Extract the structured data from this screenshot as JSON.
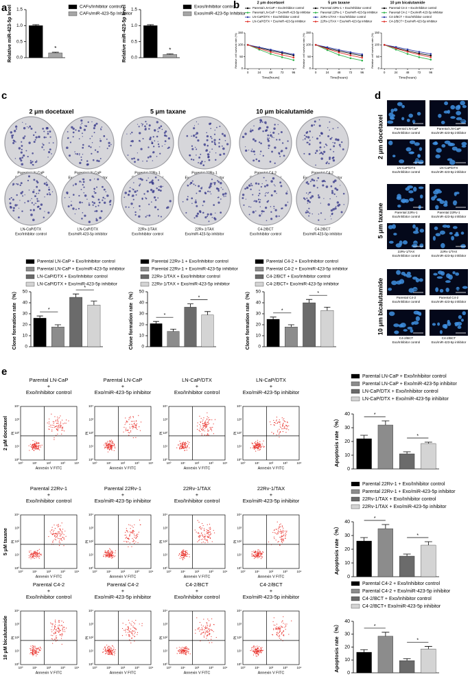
{
  "chart_data": [
    {
      "type": "bar",
      "y_label": "Relative miR-423-5p level",
      "ylim": [
        0,
        1.5
      ],
      "yticks": [
        {
          "value": 0,
          "label": "0.0"
        },
        {
          "value": 0.5,
          "label": "0.5"
        },
        {
          "value": 1,
          "label": "1.0"
        },
        {
          "value": 1.5,
          "label": "1.5"
        }
      ],
      "series": [
        {
          "name": "CAFs/Inhibitor control",
          "color": "#000000",
          "values": [
            1.0
          ],
          "errors": [
            0.03
          ]
        },
        {
          "name": "CAFs/miR-423-5p Inhibitor",
          "color": "#a6a6a6",
          "values": [
            0.15
          ],
          "errors": [
            0.02
          ]
        }
      ],
      "annotations": [
        "*"
      ]
    },
    {
      "type": "bar",
      "y_label": "Relative miR-423-5p level",
      "ylim": [
        0,
        1.5
      ],
      "yticks": [
        {
          "value": 0,
          "label": "0.0"
        },
        {
          "value": 0.5,
          "label": "0.5"
        },
        {
          "value": 1,
          "label": "1.0"
        },
        {
          "value": 1.5,
          "label": "1.5"
        }
      ],
      "series": [
        {
          "name": "Exos/Inhibitor control",
          "color": "#000000",
          "values": [
            1.0
          ],
          "errors": [
            0.03
          ]
        },
        {
          "name": "Exos/miR-423-5p Inhibitor",
          "color": "#a6a6a6",
          "values": [
            0.1
          ],
          "errors": [
            0.02
          ]
        }
      ],
      "annotations": [
        "*"
      ]
    },
    {
      "type": "line",
      "title": "2 μm docetaxel",
      "x_label": "Time(hours)",
      "y_label": "Relative cell survival rate (%)",
      "x": [
        0,
        24,
        48,
        72,
        96
      ],
      "xlim": [
        -6,
        102
      ],
      "xticks": [
        0,
        24,
        48,
        72,
        96
      ],
      "ylim": [
        0,
        150
      ],
      "yticks": [
        0,
        50,
        100,
        150
      ],
      "series": [
        {
          "name": "Parental LN-CaP + Exo/Inhibitor control",
          "color": "#000000",
          "values": [
            100,
            88,
            76,
            66,
            56
          ]
        },
        {
          "name": "Parental LN-CaP + Exo/miR-423-5p inhibitor",
          "color": "#2db34a",
          "values": [
            100,
            80,
            62,
            48,
            36
          ]
        },
        {
          "name": "LN-CaP/DTX + Exo/Inhibitor control",
          "color": "#2b3aa8",
          "values": [
            100,
            90,
            80,
            70,
            60
          ]
        },
        {
          "name": "LN-CaP/DTX + Exo/miR-423-5p inhibitor",
          "color": "#e0322b",
          "values": [
            100,
            84,
            70,
            58,
            47
          ]
        }
      ]
    },
    {
      "type": "line",
      "title": "5 μm taxane",
      "x_label": "Time(hours)",
      "y_label": "Relative cell survival rate (%)",
      "x": [
        0,
        24,
        48,
        72,
        96
      ],
      "xlim": [
        -6,
        102
      ],
      "xticks": [
        0,
        24,
        48,
        72,
        96
      ],
      "ylim": [
        0,
        150
      ],
      "yticks": [
        0,
        50,
        100,
        150
      ],
      "series": [
        {
          "name": "Parental 22Rv-1 + Exo/Inhibitor control",
          "color": "#000000",
          "values": [
            100,
            86,
            74,
            64,
            54
          ]
        },
        {
          "name": "Parental 22Rv-1 + Exo/miR-423-5p inhibitor",
          "color": "#2db34a",
          "values": [
            100,
            78,
            58,
            44,
            34
          ]
        },
        {
          "name": "22Rv-1/TAX + Exo/Inhibitor control",
          "color": "#2b3aa8",
          "values": [
            100,
            90,
            79,
            69,
            60
          ]
        },
        {
          "name": "22Rv-1/TAX + Exo/miR-423-5p inhibitor",
          "color": "#e0322b",
          "values": [
            100,
            83,
            68,
            56,
            46
          ]
        }
      ]
    },
    {
      "type": "line",
      "title": "10 μm bicalutamide",
      "x_label": "Time(hours)",
      "y_label": "Relative cell survival rate (%)",
      "x": [
        0,
        24,
        48,
        72,
        96
      ],
      "xlim": [
        -6,
        102
      ],
      "xticks": [
        0,
        24,
        48,
        72,
        96
      ],
      "ylim": [
        0,
        150
      ],
      "yticks": [
        0,
        50,
        100,
        150
      ],
      "series": [
        {
          "name": "Parental C4-2 + Exo/Inhibitor control",
          "color": "#000000",
          "values": [
            100,
            87,
            75,
            64,
            55
          ]
        },
        {
          "name": "Parental C4-2 + Exo/miR-423-5p inhibitor",
          "color": "#2db34a",
          "values": [
            100,
            80,
            62,
            48,
            38
          ]
        },
        {
          "name": "C4-2/BCT + Exo/Inhibitor control",
          "color": "#2b3aa8",
          "values": [
            100,
            91,
            81,
            71,
            62
          ]
        },
        {
          "name": "C4-2/BCT+ Exo/miR-423-5p inhibitor",
          "color": "#e0322b",
          "values": [
            100,
            85,
            71,
            59,
            48
          ]
        }
      ]
    },
    {
      "type": "bar",
      "y_label": "Clone formation rate（%）",
      "ylim": [
        0,
        50
      ],
      "yticks": [
        0,
        10,
        20,
        30,
        40,
        50
      ],
      "series": [
        {
          "name": "Parental LN-CaP + Exo/Inhibitor control",
          "color": "#000000",
          "values": [
            26
          ],
          "errors": [
            2
          ]
        },
        {
          "name": "Parental LN-CaP + Exo/miR-423-5p inhibitor",
          "color": "#8c8c8c",
          "values": [
            18
          ],
          "errors": [
            2
          ]
        },
        {
          "name": "LN-CaP/DTX + Exo/Inhibitor control",
          "color": "#6b6b6b",
          "values": [
            45
          ],
          "errors": [
            3
          ]
        },
        {
          "name": "LN-CaP/DTX + Exo/miR-423-5p inhibitor",
          "color": "#d4d4d4",
          "values": [
            38
          ],
          "errors": [
            3.5
          ]
        }
      ],
      "annotations": [
        "*",
        "*"
      ]
    },
    {
      "type": "bar",
      "y_label": "Clone formation rate（%）",
      "ylim": [
        0,
        50
      ],
      "yticks": [
        0,
        10,
        20,
        30,
        40,
        50
      ],
      "series": [
        {
          "name": "Parental 22Rv-1 + Exo/Inhibitor control",
          "color": "#000000",
          "values": [
            21
          ],
          "errors": [
            2
          ]
        },
        {
          "name": "Parental 22Rv-1 + Exo/miR-423-5p inhibitor",
          "color": "#8c8c8c",
          "values": [
            14
          ],
          "errors": [
            2
          ]
        },
        {
          "name": "22Rv-1/TAX + Exo/Inhibitor control",
          "color": "#6b6b6b",
          "values": [
            36
          ],
          "errors": [
            3
          ]
        },
        {
          "name": "22Rv-1/TAX + Exo/miR-423-5p inhibitor",
          "color": "#d4d4d4",
          "values": [
            29
          ],
          "errors": [
            3
          ]
        }
      ],
      "annotations": [
        "*",
        "*"
      ]
    },
    {
      "type": "bar",
      "y_label": "Clone formation rate（%）",
      "ylim": [
        0,
        50
      ],
      "yticks": [
        0,
        10,
        20,
        30,
        40,
        50
      ],
      "series": [
        {
          "name": "Parental C4-2 + Exo/Inhibitor control",
          "color": "#000000",
          "values": [
            25
          ],
          "errors": [
            2
          ]
        },
        {
          "name": "Parental C4-2 + Exo/miR-423-5p inhibitor",
          "color": "#8c8c8c",
          "values": [
            18
          ],
          "errors": [
            2
          ]
        },
        {
          "name": "C4-2/BCT + Exo/Inhibitor control",
          "color": "#6b6b6b",
          "values": [
            40
          ],
          "errors": [
            3
          ]
        },
        {
          "name": "C4-2/BCT+ Exo/miR-423-5p inhibitor",
          "color": "#d4d4d4",
          "values": [
            33
          ],
          "errors": [
            3
          ]
        }
      ],
      "annotations": [
        "*",
        "*"
      ]
    },
    {
      "type": "bar",
      "y_label": "Apoptosis rate（%）",
      "ylim": [
        0,
        40
      ],
      "yticks": [
        0,
        10,
        20,
        30,
        40
      ],
      "series": [
        {
          "name": "Parental LN-CaP + Exo/Inhibitor control",
          "color": "#000000",
          "values": [
            22
          ],
          "errors": [
            2.5
          ]
        },
        {
          "name": "Parental LN-CaP + Exo/miR-423-5p inhibitor",
          "color": "#8c8c8c",
          "values": [
            32
          ],
          "errors": [
            3
          ]
        },
        {
          "name": "LN-CaP/DTX + Exo/Inhibitor control",
          "color": "#6b6b6b",
          "values": [
            11
          ],
          "errors": [
            1.5
          ]
        },
        {
          "name": "LN-CaP/DTX + Exo/miR-423-5p inhibitor",
          "color": "#d4d4d4",
          "values": [
            18.5
          ],
          "errors": [
            1
          ]
        }
      ],
      "annotations": [
        "*",
        "*"
      ]
    },
    {
      "type": "bar",
      "y_label": "Apoptosis rate（%）",
      "ylim": [
        0,
        40
      ],
      "yticks": [
        0,
        10,
        20,
        30,
        40
      ],
      "series": [
        {
          "name": "Parental 22Rv-1 + Exo/Inhibitor control",
          "color": "#000000",
          "values": [
            26
          ],
          "errors": [
            2.5
          ]
        },
        {
          "name": "Parental 22Rv-1 + Exo/miR-423-5p inhibitor",
          "color": "#8c8c8c",
          "values": [
            35
          ],
          "errors": [
            3
          ]
        },
        {
          "name": "22Rv-1/TAX + Exo/Inhibitor control",
          "color": "#6b6b6b",
          "values": [
            15
          ],
          "errors": [
            1.5
          ]
        },
        {
          "name": "22Rv-1/TAX + Exo/miR-423-5p inhibitor",
          "color": "#d4d4d4",
          "values": [
            23
          ],
          "errors": [
            2.5
          ]
        }
      ],
      "annotations": [
        "*",
        "*"
      ]
    },
    {
      "type": "bar",
      "y_label": "Apoptosis rate（%）",
      "ylim": [
        0,
        40
      ],
      "yticks": [
        0,
        10,
        20,
        30,
        40
      ],
      "series": [
        {
          "name": "Parental C4-2 + Exo/Inhibitor control",
          "color": "#000000",
          "values": [
            16
          ],
          "errors": [
            2
          ]
        },
        {
          "name": "Parental C4-2 + Exo/miR-423-5p inhibitor",
          "color": "#8c8c8c",
          "values": [
            28.5
          ],
          "errors": [
            3
          ]
        },
        {
          "name": "C4-2/BCT + Exo/Inhibitor control",
          "color": "#6b6b6b",
          "values": [
            9.5
          ],
          "errors": [
            1.5
          ]
        },
        {
          "name": "C4-2/BCT+ Exo/miR-423-5p inhibitor",
          "color": "#d4d4d4",
          "values": [
            18.5
          ],
          "errors": [
            2
          ]
        }
      ],
      "annotations": [
        "*",
        "*"
      ]
    }
  ],
  "figure": {
    "panel_labels": [
      "a",
      "b",
      "c",
      "d",
      "e"
    ],
    "colony": {
      "titles": [
        "2 μm docetaxel",
        "5 μm taxane",
        "10 μm bicalutamide"
      ],
      "captions": [
        [
          "Parental LN-CaP",
          "Exo/Inhibitor control"
        ],
        [
          "Parental LN-CaP",
          "Exo/miR-423-5p inhibitor"
        ],
        [
          "Parental 22Rv-1",
          "Exo/Inhibitor control"
        ],
        [
          "Parental 22Rv-1",
          "Exo/miR-423-5p inhibitor"
        ],
        [
          "Parental C4-2",
          "Exo/Inhibitor control"
        ],
        [
          "Parental C4-2",
          "Exo/miR-423-5p inhibitor"
        ],
        [
          "LN-CaP/DTX",
          "Exo/Inhibitor control"
        ],
        [
          "LN-CaP/DTX",
          "Exo/miR-423-5p inhibitor"
        ],
        [
          "22Rv-1/TAX",
          "Exo/Inhibitor control"
        ],
        [
          "22Rv-1/TAX",
          "Exo/miR-423-5p inhibitor"
        ],
        [
          "C4-2/BCT",
          "Exo/Inhibitor control"
        ],
        [
          "C4-2/BCT",
          "Exo/miR-423-5p inhibitor"
        ]
      ]
    },
    "micro": {
      "row_labels": [
        "2 μm docetaxel",
        "5 μm taxane",
        "10 μm bicalutamide"
      ],
      "scale_bar": "100 μm",
      "captions": [
        [
          "Parental LN-CaP",
          "Exo/Inhibitor control"
        ],
        [
          "Parental LN-CaP",
          "Exo/miR-423-5p inhibitor"
        ],
        [
          "LN-CaP/DTX",
          "Exo/Inhibitor control"
        ],
        [
          "LN-CaP/DTX",
          "Exo/miR-423-5p inhibitor"
        ],
        [
          "Parental 22Rv-1",
          "Exo/Inhibitor control"
        ],
        [
          "Parental 22Rv-1",
          "Exo/miR-423-5p inhibitor"
        ],
        [
          "22Rv-1/TAX",
          "Exo/Inhibitor control"
        ],
        [
          "22Rv-1/TAX",
          "Exo/miR-423-5p inhibitor"
        ],
        [
          "Parental C4-2",
          "Exo/Inhibitor control"
        ],
        [
          "Parental C4-2",
          "Exo/miR-423-5p inhibitor"
        ],
        [
          "C4-2/BCT",
          "Exo/Inhibitor control"
        ],
        [
          "C4-2/BCT",
          "Exo/miR-423-5p inhibitor"
        ]
      ]
    },
    "flow": {
      "row_labels": [
        "2 μM docetaxel",
        "5 μM taxane",
        "10 μM bicalutamide"
      ],
      "x_label": "Annexin V FITC",
      "y_label": "PI",
      "ticks": [
        "10⁰",
        "10¹",
        "10²",
        "10³",
        "10⁴"
      ],
      "titles": [
        [
          "Parental LN-CaP",
          "+",
          "Exo/Inhibitor control"
        ],
        [
          "Parental LN-CaP",
          "+",
          "Exo/miR-423-5p inhibitor"
        ],
        [
          "LN-CaP/DTX",
          "+",
          "Exo/Inhibitor control"
        ],
        [
          "LN-CaP/DTX",
          "+",
          "Exo/miR-423-5p inhibitor"
        ],
        [
          "Parental 22Rv-1",
          "+",
          "Exo/Inhibitor control"
        ],
        [
          "Parental 22Rv-1",
          "+",
          "Exo/miR-423-5p inhibitor"
        ],
        [
          "22Rv-1/TAX",
          "+",
          "Exo/Inhibitor control"
        ],
        [
          "22Rv-1/TAX",
          "+",
          "Exo/miR-423-5p inhibitor"
        ],
        [
          "Parental C4-2",
          "+",
          "Exo/Inhibitor control"
        ],
        [
          "Parental C4-2",
          "+",
          "Exo/miR-423-5p inhibitor"
        ],
        [
          "C4-2/BCT",
          "+",
          "Exo/Inhibitor control"
        ],
        [
          "C4-2/BCT",
          "+",
          "Exo/miR-423-5p inhibitor"
        ]
      ]
    }
  }
}
